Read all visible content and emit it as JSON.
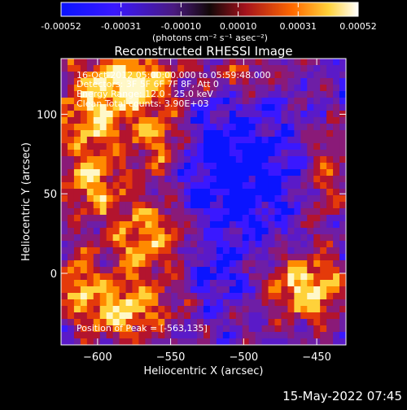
{
  "colorbar": {
    "ticks": [
      "-0.00052",
      "-0.00031",
      "-0.00010",
      "0.00010",
      "0.00031",
      "0.00052"
    ],
    "tick_values": [
      -0.00052,
      -0.00031,
      -0.0001,
      0.0001,
      0.00031,
      0.00052
    ],
    "range": [
      -0.00052,
      0.00052
    ],
    "unit_label": "(photons cm⁻² s⁻¹ asec⁻²)"
  },
  "chart_data": {
    "type": "heatmap",
    "title": "Reconstructed RHESSI Image",
    "xlabel": "Heliocentric X (arcsec)",
    "ylabel": "Heliocentric Y (arcsec)",
    "xlim": [
      -625,
      -430
    ],
    "ylim": [
      -45,
      135
    ],
    "xticks": [
      -600,
      -550,
      -500,
      -450
    ],
    "yticks": [
      0,
      50,
      100
    ],
    "x_tick_labels": [
      "−600",
      "−550",
      "−500",
      "−450"
    ],
    "y_tick_labels": [
      "0",
      "50",
      "100"
    ],
    "annotations": [
      "16-Oct-2012 05:00:00.000 to 05:59:48.000",
      "Detectors: 3F 5F 6F 7F 8F, Att 0",
      "Energy Range: 12.0 - 25.0 keV",
      "Clean    Total counts: 3.90E+03"
    ],
    "peak_label": "Position of Peak = [-563,135]",
    "peak": [
      -563,
      135
    ],
    "colormap": [
      "#0a14ff",
      "#3a18ff",
      "#5a1ac8",
      "#6e1ea6",
      "#8a1a78",
      "#b3142e",
      "#e43a0a",
      "#ff8a00",
      "#ffd23a",
      "#fff8c8"
    ],
    "scale_range": [
      -0.00052,
      0.00052
    ]
  },
  "footer": {
    "timestamp": "15-May-2022 07:45"
  }
}
